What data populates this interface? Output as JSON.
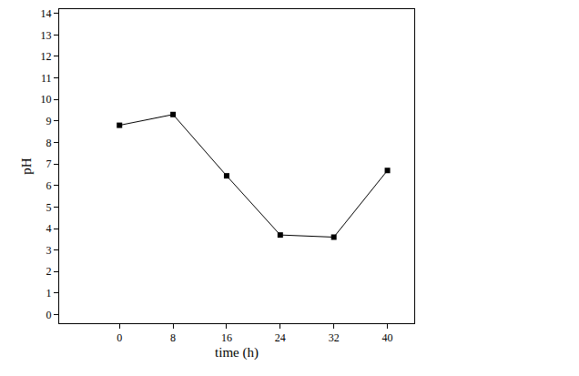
{
  "chart_data": {
    "type": "line",
    "x_label": "time (h)",
    "y_label": "pH",
    "x": [
      0,
      8,
      16,
      24,
      32,
      40
    ],
    "series": [
      {
        "values": [
          8.8,
          9.3,
          6.45,
          3.7,
          3.6,
          6.7
        ],
        "color": "#000000",
        "marker": "square",
        "line_style": "solid"
      }
    ],
    "xlim": [
      -9,
      44
    ],
    "xticks": [
      0,
      8,
      16,
      24,
      32,
      40
    ],
    "ylim": [
      -0.4,
      14.2
    ],
    "yticks": [
      0,
      1,
      2,
      3,
      4,
      5,
      6,
      7,
      8,
      9,
      10,
      11,
      12,
      13,
      14
    ],
    "grid": false
  }
}
